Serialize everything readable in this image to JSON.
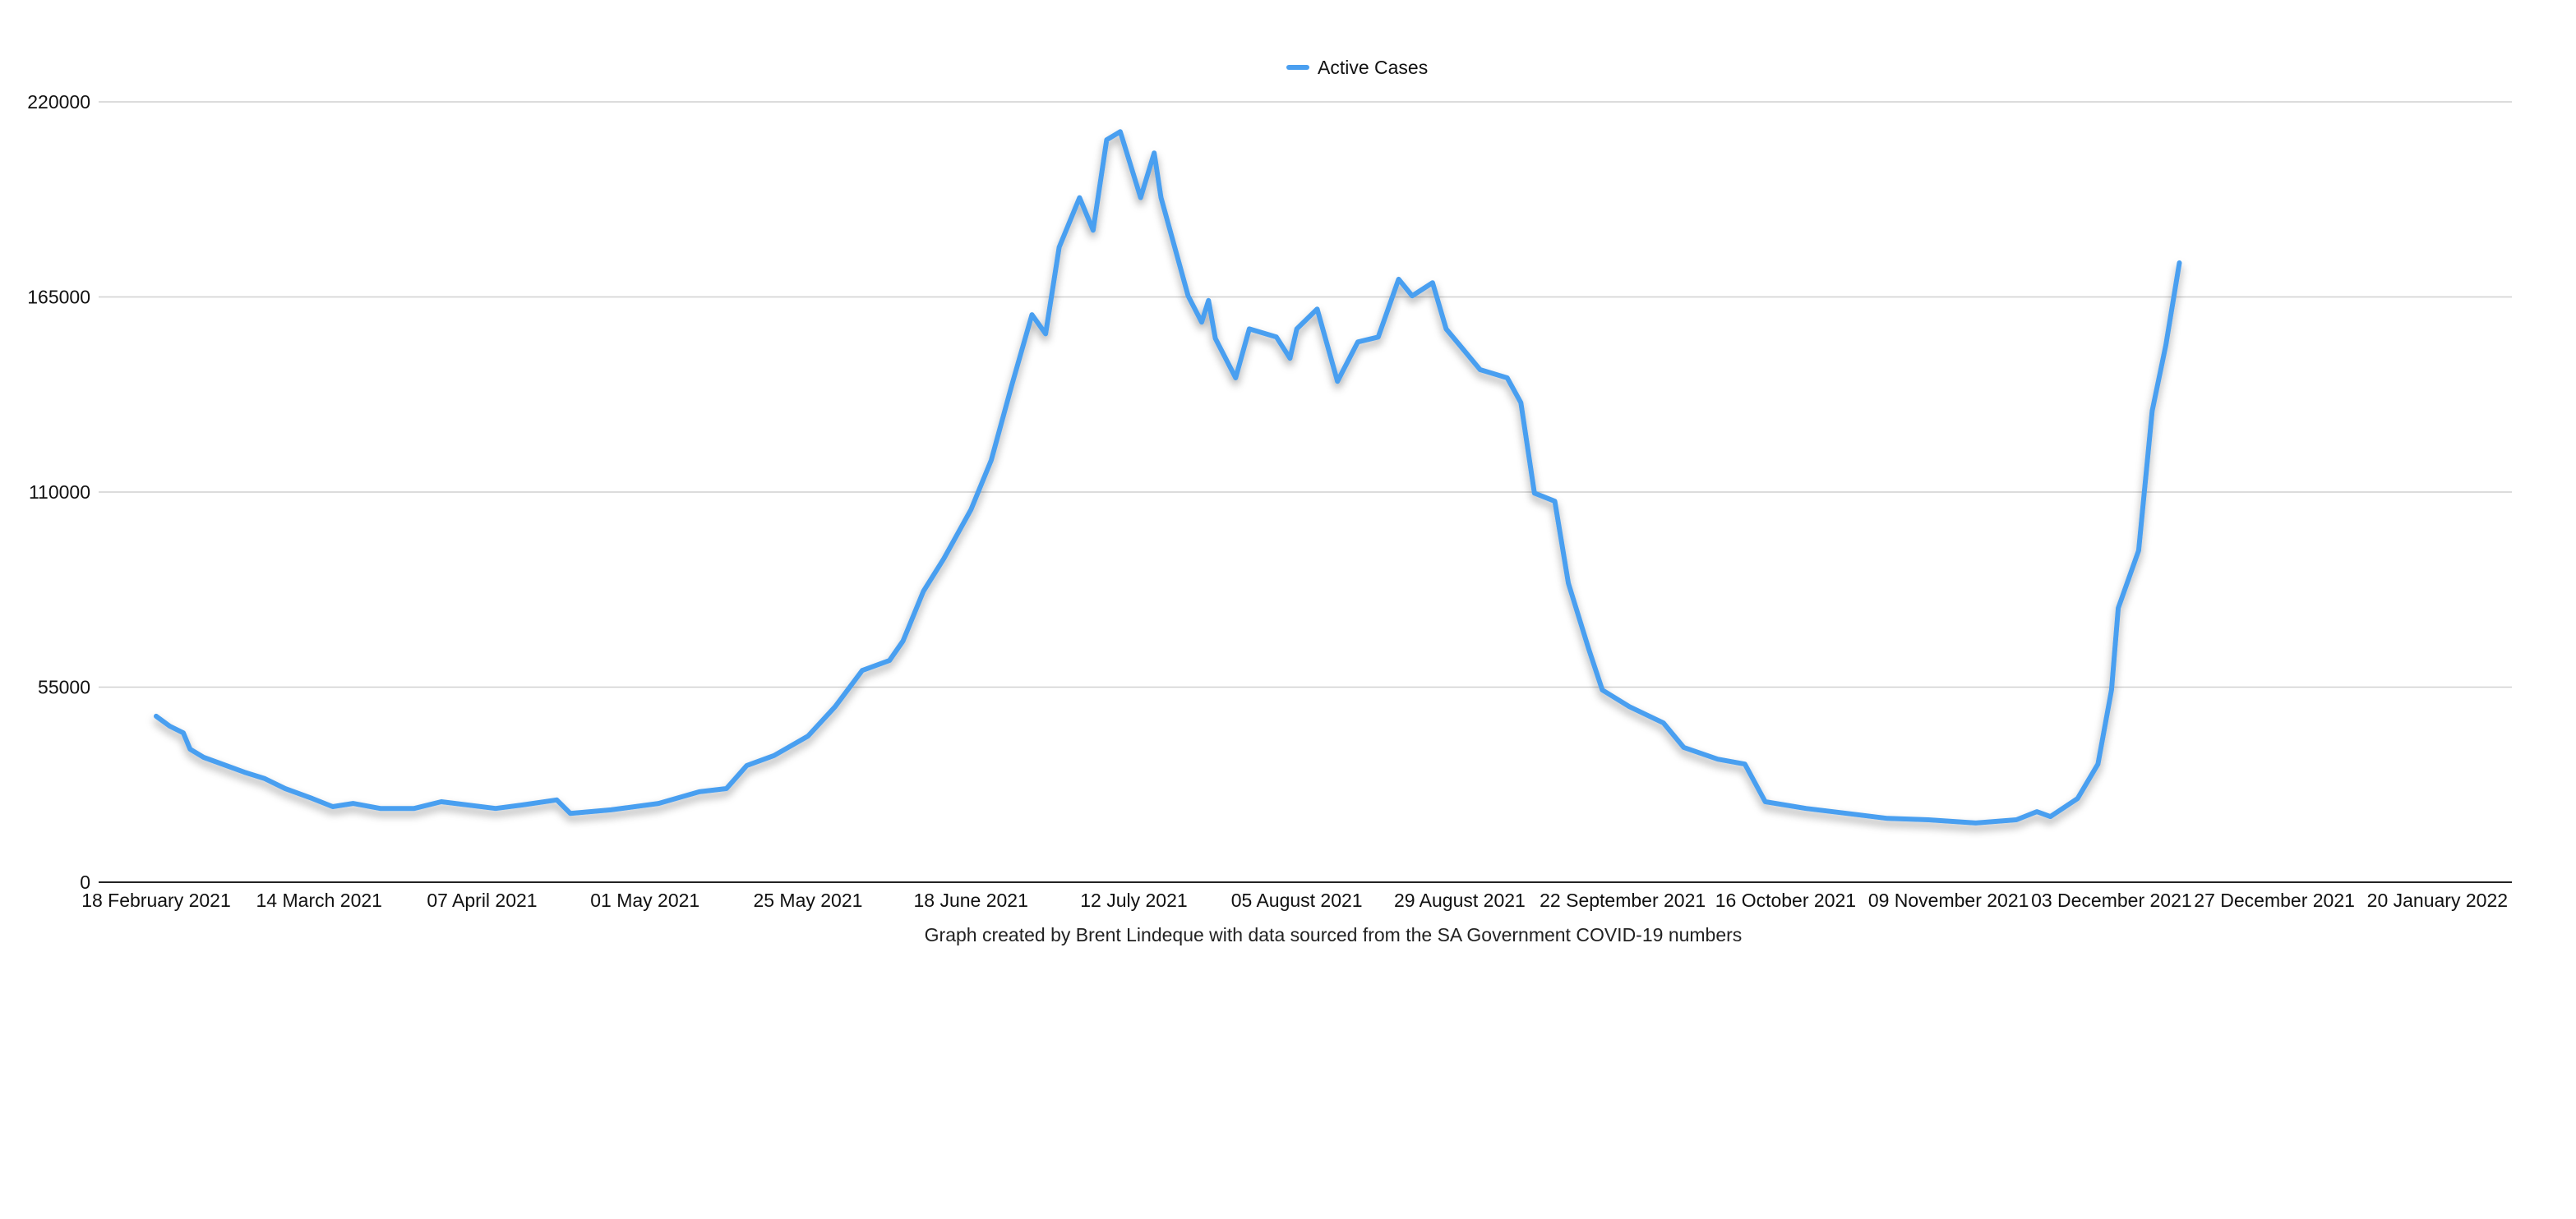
{
  "chart_data": {
    "type": "line",
    "title": "",
    "xlabel": "Graph created by Brent Lindeque with data sourced from the SA Government COVID-19 numbers",
    "ylabel": "",
    "legend": {
      "position": "top-center",
      "entries": [
        "Active Cases"
      ]
    },
    "grid": true,
    "ylim": [
      0,
      220000
    ],
    "y_ticks": [
      "0",
      "55000",
      "110000",
      "165000",
      "220000"
    ],
    "y_tick_values": [
      0,
      55000,
      110000,
      165000,
      220000
    ],
    "x_unit": "days since 18 February 2021",
    "x_ticks": [
      "18 February 2021",
      "14 March 2021",
      "07 April 2021",
      "01 May 2021",
      "25 May 2021",
      "18 June 2021",
      "12 July 2021",
      "05 August 2021",
      "29 August 2021",
      "22 September 2021",
      "16 October 2021",
      "09 November 2021",
      "03 December 2021",
      "27 December 2021",
      "20 January 2022"
    ],
    "x_tick_days": [
      0,
      24,
      48,
      72,
      96,
      120,
      144,
      168,
      192,
      216,
      240,
      264,
      288,
      312,
      336
    ],
    "series": [
      {
        "name": "Active Cases",
        "color": "#4a9ff0",
        "x": [
          0,
          2,
          4,
          5,
          7,
          9,
          13,
          16,
          19,
          23,
          26,
          29,
          33,
          38,
          42,
          50,
          54,
          59,
          61,
          67,
          74,
          80,
          84,
          87,
          91,
          96,
          100,
          104,
          108,
          110,
          113,
          116,
          120,
          123,
          126,
          129,
          131,
          133,
          136,
          138,
          140,
          142,
          145,
          147,
          148,
          152,
          154,
          155,
          156,
          159,
          161,
          165,
          167,
          168,
          171,
          174,
          177,
          180,
          183,
          185,
          188,
          190,
          192,
          195,
          199,
          201,
          203,
          206,
          208,
          211,
          213,
          217,
          222,
          225,
          230,
          234,
          237,
          243,
          249,
          255,
          261,
          268,
          274,
          277,
          279,
          283,
          286,
          288,
          289,
          292,
          294,
          296,
          298
        ],
        "values": [
          46800,
          44000,
          42100,
          37500,
          35200,
          33800,
          31000,
          29200,
          26400,
          23600,
          21300,
          22200,
          20800,
          20800,
          22700,
          20800,
          21800,
          23200,
          19400,
          20400,
          22200,
          25500,
          26400,
          32900,
          35700,
          41200,
          49500,
          59700,
          62500,
          68000,
          82000,
          91200,
          105000,
          119000,
          140000,
          160000,
          154600,
          179000,
          193000,
          183800,
          209300,
          211600,
          193000,
          205600,
          193000,
          165300,
          157900,
          164000,
          153300,
          142200,
          156000,
          153700,
          147700,
          156000,
          161600,
          141200,
          152300,
          153700,
          170000,
          165300,
          169000,
          156000,
          151400,
          144500,
          142200,
          135200,
          109700,
          107400,
          84300,
          65700,
          54200,
          49500,
          44900,
          38000,
          34700,
          33300,
          22700,
          20800,
          19400,
          18000,
          17600,
          16700,
          17600,
          19900,
          18500,
          23600,
          33300,
          54200,
          77300,
          93500,
          132900,
          151400,
          174600
        ]
      }
    ]
  }
}
